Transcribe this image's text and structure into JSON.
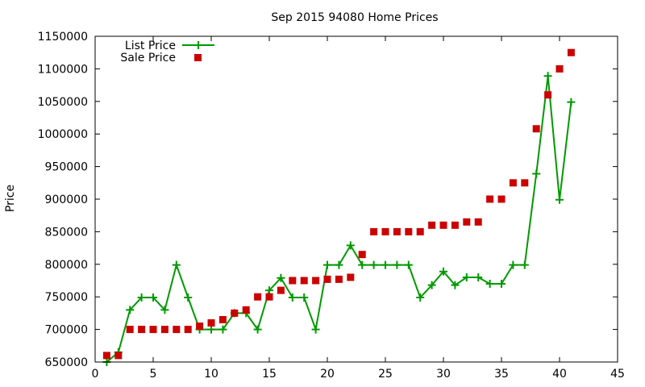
{
  "chart_data": {
    "type": "line",
    "title": "Sep 2015 94080 Home Prices",
    "xlabel": "",
    "ylabel": "Price",
    "xlim": [
      0,
      45
    ],
    "ylim": [
      650000,
      1150000
    ],
    "xticks": [
      0,
      5,
      10,
      15,
      20,
      25,
      30,
      35,
      40,
      45
    ],
    "yticks": [
      650000,
      700000,
      750000,
      800000,
      850000,
      900000,
      950000,
      1000000,
      1050000,
      1100000,
      1150000
    ],
    "xtick_labels": [
      "0",
      "5",
      "10",
      "15",
      "20",
      "25",
      "30",
      "35",
      "40",
      "45"
    ],
    "ytick_labels": [
      "650000",
      "700000",
      "750000",
      "800000",
      "850000",
      "900000",
      "950000",
      "1000000",
      "1050000",
      "1100000",
      "1150000"
    ],
    "grid": false,
    "legend_position": "top-left",
    "x": [
      1,
      2,
      3,
      4,
      5,
      6,
      7,
      8,
      9,
      10,
      11,
      12,
      13,
      14,
      15,
      16,
      17,
      18,
      19,
      20,
      21,
      22,
      23,
      24,
      25,
      26,
      27,
      28,
      29,
      30,
      31,
      32,
      33,
      34,
      35,
      36,
      37,
      38,
      39,
      40,
      41
    ],
    "series": [
      {
        "name": "List Price",
        "style": "line-plus",
        "color": "#009900",
        "values": [
          650000,
          665000,
          730000,
          749000,
          749000,
          730000,
          799000,
          749000,
          700000,
          700000,
          700000,
          725000,
          725000,
          700000,
          760000,
          779000,
          749000,
          749000,
          700000,
          799000,
          799000,
          829000,
          799000,
          799000,
          799000,
          799000,
          799000,
          749000,
          768000,
          789000,
          768000,
          780000,
          780000,
          770000,
          770000,
          799000,
          799000,
          939000,
          1089000,
          899000,
          1049000
        ]
      },
      {
        "name": "Sale Price",
        "style": "square-markers",
        "color": "#cc0000",
        "values": [
          660000,
          660000,
          700000,
          700000,
          700000,
          700000,
          700000,
          700000,
          705000,
          710000,
          715000,
          725000,
          730000,
          750000,
          750000,
          760000,
          775000,
          775000,
          775000,
          777000,
          777000,
          780000,
          815000,
          850000,
          850000,
          850000,
          850000,
          850000,
          860000,
          860000,
          860000,
          865000,
          865000,
          900000,
          900000,
          925000,
          925000,
          1008000,
          1060000,
          1100000,
          1125000
        ]
      }
    ]
  }
}
